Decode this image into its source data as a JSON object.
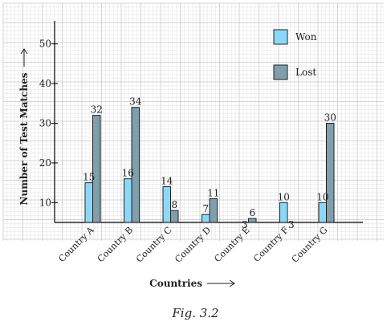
{
  "chart_data": {
    "type": "bar",
    "categories": [
      "Country A",
      "Country B",
      "Country C",
      "Country D",
      "Country E",
      "Country F",
      "Country G"
    ],
    "series": [
      {
        "name": "Won",
        "values": [
          15,
          16,
          14,
          7,
          3,
          10,
          10
        ],
        "color": "#8dd8f8"
      },
      {
        "name": "Lost",
        "values": [
          32,
          34,
          8,
          11,
          6,
          3,
          30
        ],
        "color": "#7f9fad"
      }
    ],
    "title": "",
    "xlabel": "Countries",
    "ylabel": "Number of Test Matches",
    "yticks": [
      10,
      20,
      30,
      40,
      50
    ],
    "ylim": [
      5,
      55
    ],
    "grid": true,
    "legend_position": "top-right"
  },
  "caption": "Fig. 3.2",
  "colors": {
    "grid_minor": "#e2e2e2",
    "grid_major": "#c8c8c8",
    "axis": "#000000"
  }
}
